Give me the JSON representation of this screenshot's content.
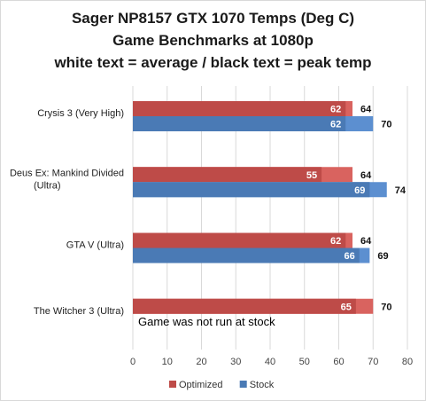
{
  "chart_data": {
    "type": "bar",
    "orientation": "horizontal",
    "title_lines": [
      "Sager NP8157 GTX 1070 Temps (Deg C)",
      "Game Benchmarks at 1080p",
      "white text = average / black text = peak temp"
    ],
    "categories": [
      [
        "Crysis 3 (Very High)"
      ],
      [
        "Deus Ex: Mankind Divided",
        "(Ultra)"
      ],
      [
        "GTA V (Ultra)"
      ],
      [
        "The Witcher 3 (Ultra)"
      ]
    ],
    "series": [
      {
        "name": "Optimized",
        "color": "#be4b48",
        "peak_color": "#d9635f",
        "average": [
          62,
          55,
          62,
          65
        ],
        "peak": [
          64,
          64,
          64,
          70
        ],
        "average_labels": [
          "62",
          "55",
          "62",
          "65"
        ],
        "peak_labels": [
          "64",
          "64",
          "64",
          "70"
        ]
      },
      {
        "name": "Stock",
        "color": "#4a7ab5",
        "peak_color": "#5c8fd0",
        "average": [
          62,
          69,
          66,
          null
        ],
        "peak": [
          70,
          74,
          69,
          null
        ],
        "average_labels": [
          "62",
          "69",
          "66",
          ""
        ],
        "peak_labels": [
          "70",
          "74",
          "69",
          ""
        ]
      }
    ],
    "xlim": [
      0,
      80
    ],
    "xticks": [
      "0",
      "10",
      "20",
      "30",
      "40",
      "50",
      "60",
      "70",
      "80"
    ],
    "grid": true,
    "legend_position": "bottom",
    "annotations": [
      {
        "category_index": 3,
        "text": "Game was not run at stock"
      }
    ]
  }
}
